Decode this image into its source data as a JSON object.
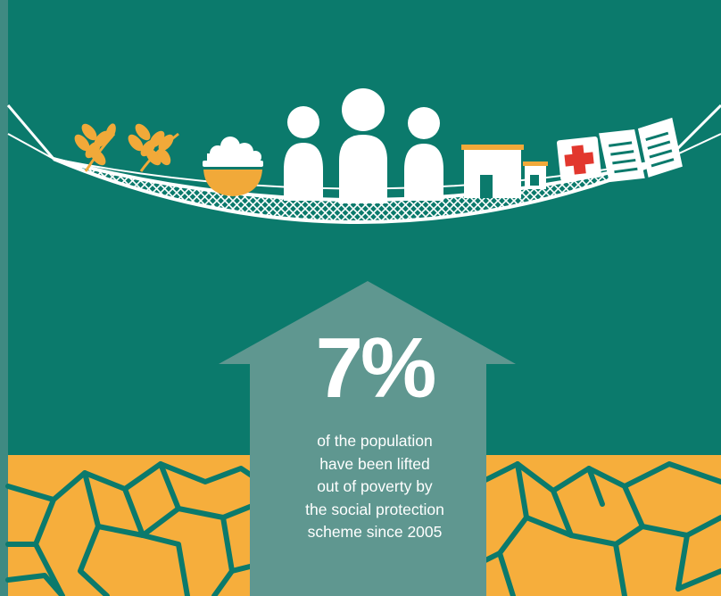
{
  "colors": {
    "background_teal": "#0b7a6c",
    "left_strip": "#3f8a82",
    "arrow": "#5f9790",
    "ground_orange": "#f6ae3c",
    "crack_teal": "#0b7a6c",
    "grain_orange": "#f1a939",
    "bowl_orange": "#f1a939",
    "white": "#ffffff",
    "medical_cross": "#e2372e"
  },
  "icons": [
    "wheat-icon",
    "wheat-icon",
    "rice-bowl-icon",
    "person-icon",
    "person-icon",
    "person-icon",
    "house-icon",
    "medical-kit-icon",
    "open-book-icon"
  ],
  "stat": {
    "value": "7%",
    "caption_lines": [
      "of the population",
      "have been lifted",
      "out of poverty by",
      "the social protection",
      "scheme since 2005"
    ]
  }
}
